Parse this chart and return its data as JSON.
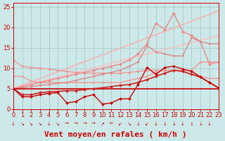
{
  "background_color": "#cce8e8",
  "grid_color": "#aacccc",
  "xlabel": "Vent moyen/en rafales ( km/h )",
  "xlabel_color": "#cc0000",
  "xlabel_fontsize": 8,
  "xlim": [
    0,
    23
  ],
  "ylim": [
    0,
    26
  ],
  "yticks": [
    0,
    5,
    10,
    15,
    20,
    25
  ],
  "xticks": [
    0,
    1,
    2,
    3,
    4,
    5,
    6,
    7,
    8,
    9,
    10,
    11,
    12,
    13,
    14,
    15,
    16,
    17,
    18,
    19,
    20,
    21,
    22,
    23
  ],
  "tick_color": "#cc0000",
  "tick_fontsize": 6.0,
  "lines": [
    {
      "note": "straight diagonal light pink - from bottom-left 5 to top-right ~24",
      "x": [
        0,
        23
      ],
      "y": [
        5.0,
        24.0
      ],
      "color": "#ffaaaa",
      "lw": 1.0,
      "marker": null,
      "ms": 0
    },
    {
      "note": "straight diagonal lighter pink - from 5 to ~18",
      "x": [
        0,
        23
      ],
      "y": [
        5.0,
        18.0
      ],
      "color": "#ffbbbb",
      "lw": 1.0,
      "marker": null,
      "ms": 0
    },
    {
      "note": "line starting at 12, going to ~10 at x=2, then slowly rising to ~11 at x=23, pink with markers",
      "x": [
        0,
        1,
        2,
        3,
        4,
        5,
        6,
        7,
        8,
        9,
        10,
        11,
        12,
        13,
        14,
        15,
        16,
        17,
        18,
        19,
        20,
        21,
        22,
        23
      ],
      "y": [
        12.0,
        10.5,
        10.2,
        10.0,
        9.8,
        9.5,
        9.2,
        9.0,
        8.8,
        8.8,
        8.8,
        8.8,
        8.8,
        9.0,
        9.2,
        9.5,
        9.5,
        9.5,
        9.5,
        9.5,
        9.5,
        11.5,
        11.5,
        11.5
      ],
      "color": "#ee9999",
      "lw": 1.0,
      "marker": "D",
      "ms": 2.0
    },
    {
      "note": "line starting at ~8, gradually rising to ~16 with dip/rise, pink markers",
      "x": [
        0,
        1,
        2,
        3,
        4,
        5,
        6,
        7,
        8,
        9,
        10,
        11,
        12,
        13,
        14,
        15,
        16,
        17,
        18,
        19,
        20,
        21,
        22,
        23
      ],
      "y": [
        8.0,
        8.0,
        6.8,
        6.5,
        6.5,
        6.5,
        6.5,
        6.5,
        6.5,
        6.5,
        6.5,
        6.5,
        6.5,
        7.0,
        7.5,
        8.0,
        9.0,
        9.5,
        9.5,
        9.5,
        9.5,
        8.0,
        7.5,
        7.5
      ],
      "color": "#ee9999",
      "lw": 1.0,
      "marker": "D",
      "ms": 1.5
    },
    {
      "note": "the big peak line - light salmon, goes up to 21 then 23.5 then down",
      "x": [
        0,
        1,
        2,
        3,
        4,
        5,
        6,
        7,
        8,
        9,
        10,
        11,
        12,
        13,
        14,
        15,
        16,
        17,
        18,
        19,
        20,
        21,
        22,
        23
      ],
      "y": [
        5.0,
        5.5,
        6.0,
        6.5,
        7.0,
        7.5,
        8.0,
        8.5,
        9.0,
        9.5,
        10.0,
        10.5,
        11.0,
        12.0,
        13.5,
        16.0,
        21.0,
        19.5,
        23.5,
        19.0,
        18.0,
        16.5,
        11.0,
        11.5
      ],
      "color": "#ee8888",
      "lw": 1.0,
      "marker": "D",
      "ms": 2.0
    },
    {
      "note": "medium pink line with markers, gradual rise to ~18 peak",
      "x": [
        0,
        1,
        2,
        3,
        4,
        5,
        6,
        7,
        8,
        9,
        10,
        11,
        12,
        13,
        14,
        15,
        16,
        17,
        18,
        19,
        20,
        21,
        22,
        23
      ],
      "y": [
        5.0,
        5.2,
        5.5,
        5.8,
        6.0,
        6.3,
        6.5,
        7.0,
        7.5,
        8.0,
        8.5,
        9.0,
        9.5,
        10.5,
        11.5,
        15.5,
        14.0,
        13.5,
        13.0,
        13.0,
        17.5,
        16.5,
        16.0,
        16.0
      ],
      "color": "#dd8888",
      "lw": 1.0,
      "marker": "D",
      "ms": 1.5
    },
    {
      "note": "flat red line at ~5",
      "x": [
        0,
        23
      ],
      "y": [
        5.0,
        5.0
      ],
      "color": "#cc0000",
      "lw": 1.2,
      "marker": null,
      "ms": 0
    },
    {
      "note": "red line gradually rising from 5 to ~8 with markers",
      "x": [
        0,
        1,
        2,
        3,
        4,
        5,
        6,
        7,
        8,
        9,
        10,
        11,
        12,
        13,
        14,
        15,
        16,
        17,
        18,
        19,
        20,
        21,
        22,
        23
      ],
      "y": [
        5.0,
        3.5,
        3.5,
        4.0,
        4.2,
        4.3,
        4.5,
        4.5,
        4.8,
        5.0,
        5.2,
        5.5,
        5.8,
        6.0,
        6.5,
        7.2,
        8.0,
        8.8,
        9.5,
        9.2,
        8.5,
        7.8,
        6.5,
        5.2
      ],
      "color": "#cc2222",
      "lw": 1.2,
      "marker": "D",
      "ms": 2.0
    },
    {
      "note": "dark red zigzag going very low then rising sharply",
      "x": [
        0,
        1,
        2,
        3,
        4,
        5,
        6,
        7,
        8,
        9,
        10,
        11,
        12,
        13,
        14,
        15,
        16,
        17,
        18,
        19,
        20,
        21,
        22,
        23
      ],
      "y": [
        5.0,
        3.0,
        3.0,
        3.5,
        3.8,
        4.0,
        1.5,
        1.8,
        3.0,
        3.5,
        1.2,
        1.5,
        2.5,
        2.5,
        6.0,
        10.2,
        8.5,
        10.2,
        10.5,
        9.8,
        9.2,
        7.8,
        6.5,
        5.2
      ],
      "color": "#cc0000",
      "lw": 1.0,
      "marker": "D",
      "ms": 2.0
    }
  ],
  "arrow_labels": [
    "↓",
    "↘",
    "↘",
    "↘",
    "↓",
    "↘",
    "→",
    "→",
    "→",
    "→",
    "↗",
    "←",
    "↙",
    "↘",
    "↓",
    "↙",
    "↓",
    "↓",
    "↓",
    "↓",
    "↓",
    "↓",
    "↓"
  ]
}
